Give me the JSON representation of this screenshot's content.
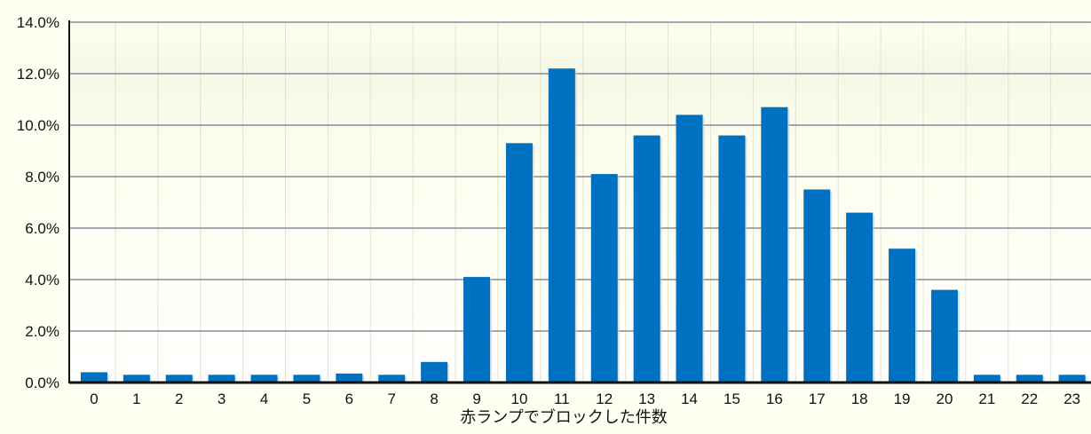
{
  "chart_data": {
    "type": "bar",
    "categories": [
      "0",
      "1",
      "2",
      "3",
      "4",
      "5",
      "6",
      "7",
      "8",
      "9",
      "10",
      "11",
      "12",
      "13",
      "14",
      "15",
      "16",
      "17",
      "18",
      "19",
      "20",
      "21",
      "22",
      "23"
    ],
    "values": [
      0.4,
      0.3,
      0.3,
      0.3,
      0.3,
      0.3,
      0.35,
      0.3,
      0.8,
      4.1,
      9.3,
      12.2,
      8.1,
      9.6,
      10.4,
      9.6,
      10.7,
      7.5,
      6.6,
      5.2,
      3.6,
      0.3,
      0.3,
      0.3
    ],
    "y_ticks": [
      "0.0%",
      "2.0%",
      "4.0%",
      "6.0%",
      "8.0%",
      "10.0%",
      "12.0%",
      "14.0%"
    ],
    "ylim": [
      0,
      14
    ],
    "xlabel": "赤ランプでブロックした件数",
    "ylabel": "",
    "title": "",
    "grid": true,
    "bar_color": "#0070c0",
    "background_color": "#fffff2"
  }
}
